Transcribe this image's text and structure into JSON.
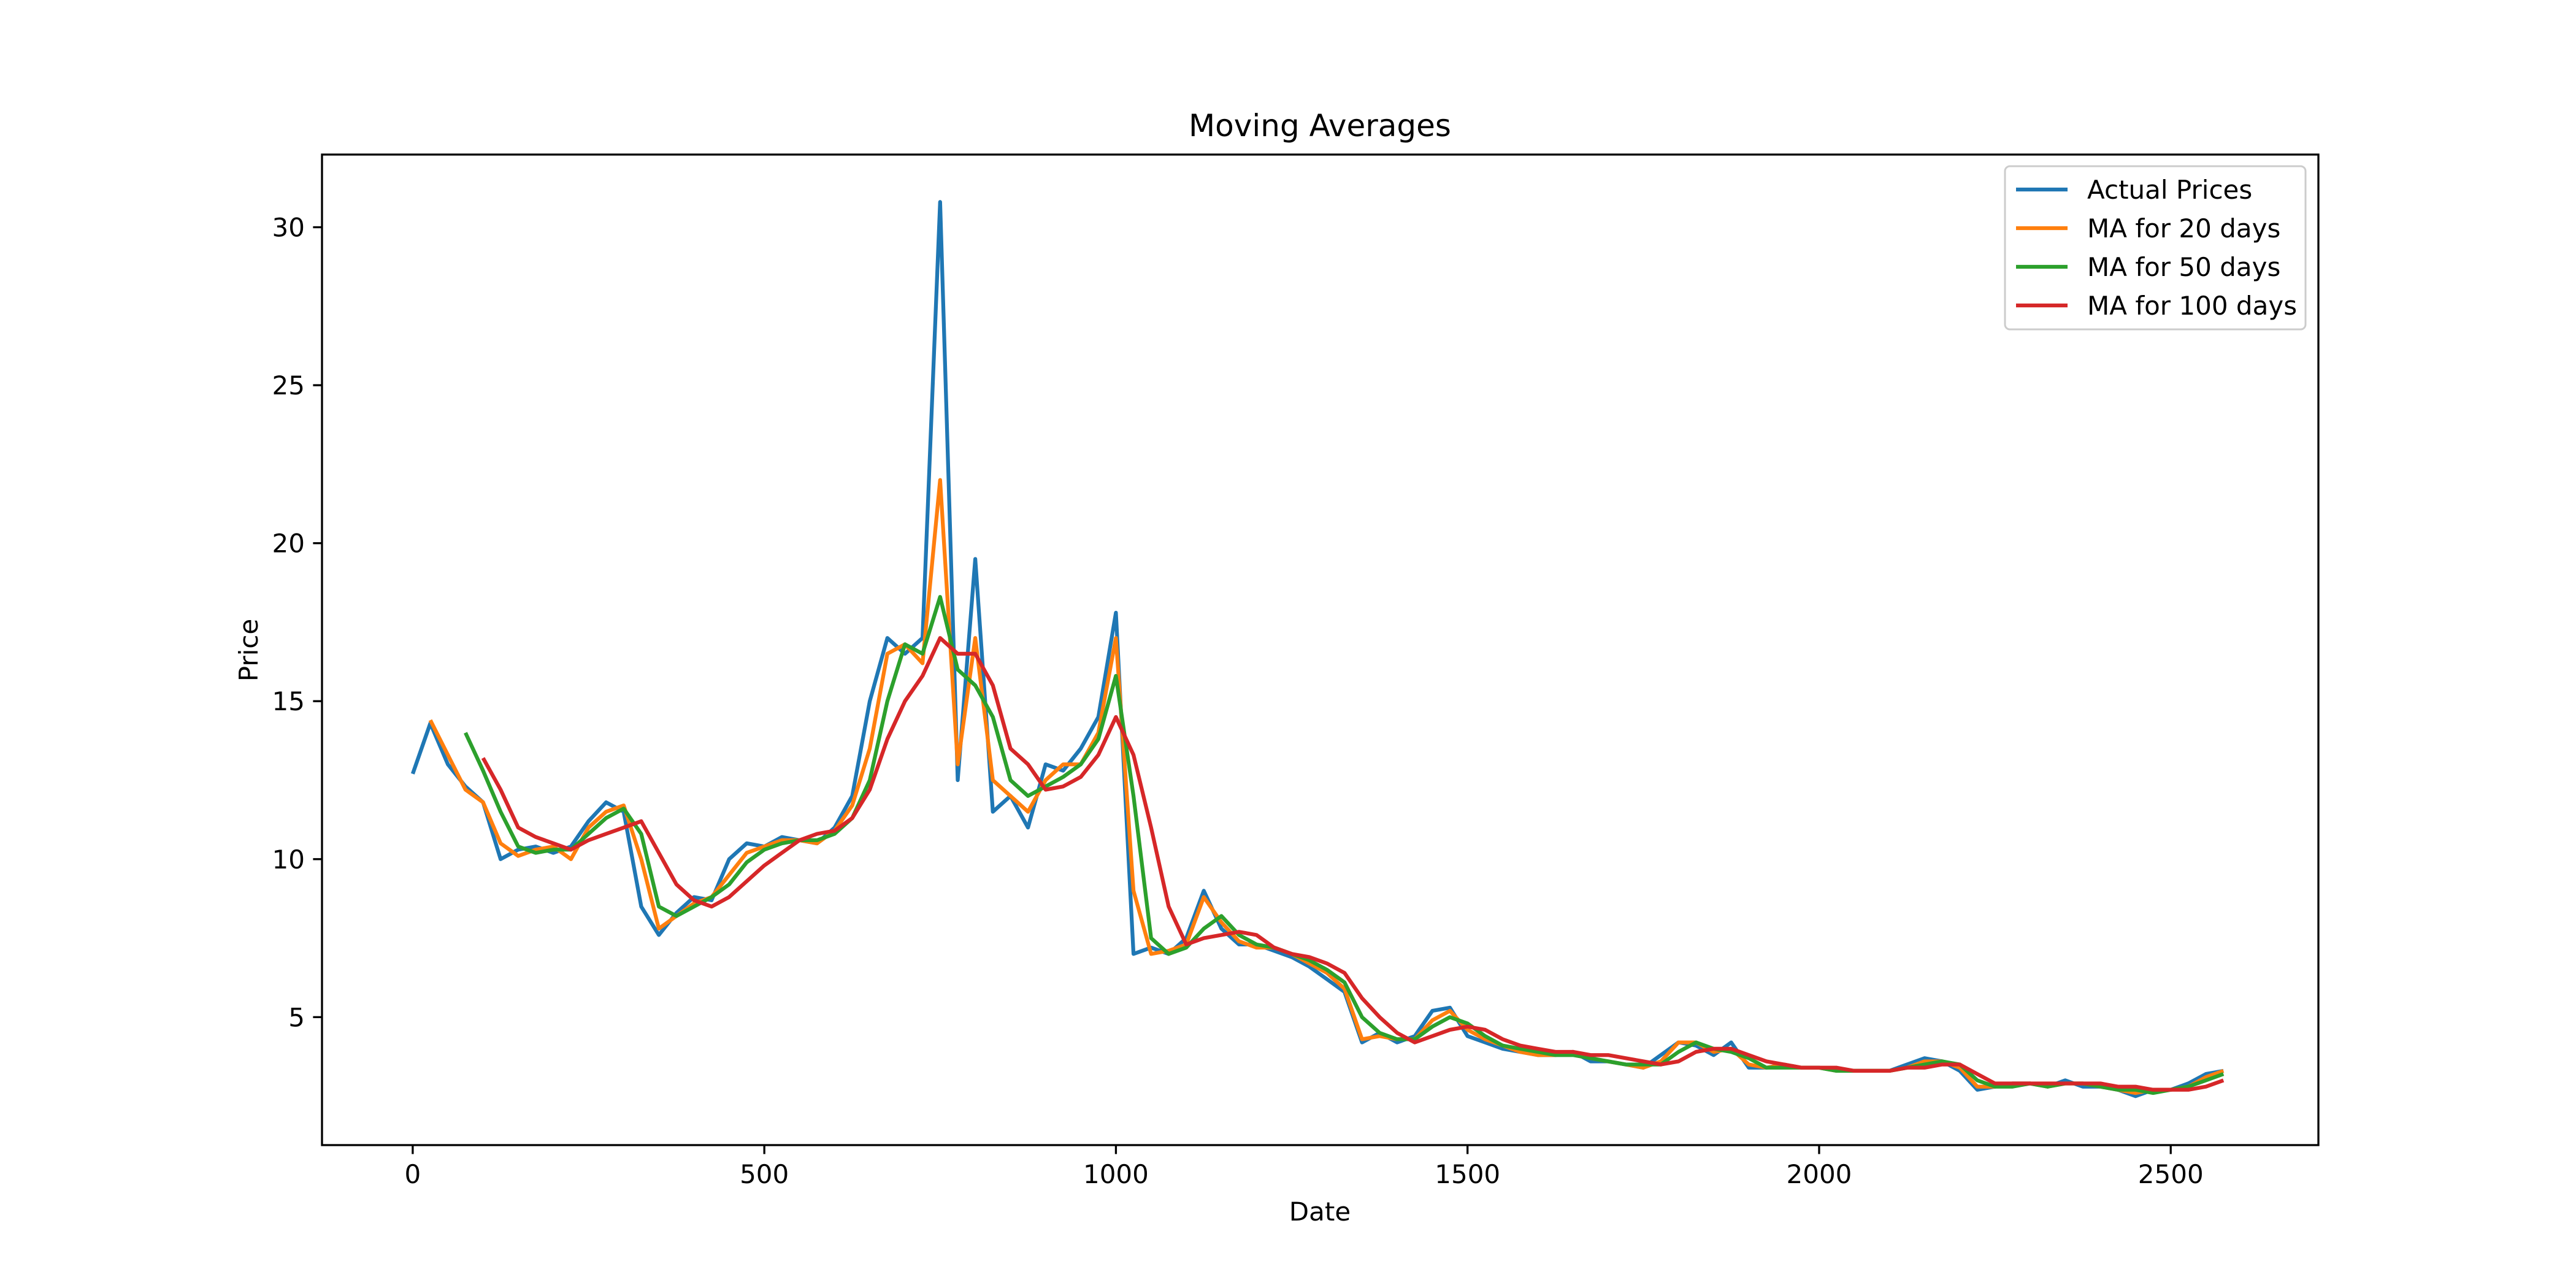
{
  "chart_data": {
    "type": "line",
    "title": "Moving Averages",
    "x_label": "Date",
    "y_label": "Price",
    "x": [
      0,
      25,
      50,
      75,
      100,
      125,
      150,
      175,
      200,
      225,
      250,
      275,
      300,
      325,
      350,
      375,
      400,
      425,
      450,
      475,
      500,
      525,
      550,
      575,
      600,
      625,
      650,
      675,
      700,
      725,
      750,
      775,
      800,
      825,
      850,
      875,
      900,
      925,
      950,
      975,
      1000,
      1025,
      1050,
      1075,
      1100,
      1125,
      1150,
      1175,
      1200,
      1225,
      1250,
      1275,
      1300,
      1325,
      1350,
      1375,
      1400,
      1425,
      1450,
      1475,
      1500,
      1525,
      1550,
      1575,
      1600,
      1625,
      1650,
      1675,
      1700,
      1725,
      1750,
      1775,
      1800,
      1825,
      1850,
      1875,
      1900,
      1925,
      1950,
      1975,
      2000,
      2025,
      2050,
      2075,
      2100,
      2125,
      2150,
      2175,
      2200,
      2225,
      2250,
      2275,
      2300,
      2325,
      2350,
      2375,
      2400,
      2425,
      2450,
      2475,
      2500,
      2525,
      2550,
      2575
    ],
    "series": [
      {
        "name": "Actual Prices",
        "color": "#1f77b4",
        "values": [
          12.7,
          14.3,
          13.0,
          12.3,
          11.8,
          10.0,
          10.3,
          10.4,
          10.2,
          10.4,
          11.2,
          11.8,
          11.5,
          8.5,
          7.6,
          8.3,
          8.8,
          8.7,
          10.0,
          10.5,
          10.4,
          10.7,
          10.6,
          10.5,
          11.0,
          12.0,
          15.0,
          17.0,
          16.5,
          17.0,
          30.8,
          12.5,
          19.5,
          11.5,
          12.0,
          11.0,
          13.0,
          12.8,
          13.5,
          14.5,
          17.8,
          7.0,
          7.2,
          7.0,
          7.5,
          9.0,
          7.8,
          7.3,
          7.3,
          7.1,
          6.9,
          6.6,
          6.2,
          5.8,
          4.2,
          4.5,
          4.2,
          4.4,
          5.2,
          5.3,
          4.4,
          4.2,
          4.0,
          3.9,
          3.8,
          3.8,
          3.9,
          3.6,
          3.6,
          3.5,
          3.4,
          3.8,
          4.2,
          4.1,
          3.8,
          4.2,
          3.4,
          3.4,
          3.5,
          3.4,
          3.4,
          3.3,
          3.3,
          3.3,
          3.3,
          3.5,
          3.7,
          3.6,
          3.3,
          2.7,
          2.8,
          2.9,
          2.9,
          2.8,
          3.0,
          2.8,
          2.8,
          2.7,
          2.5,
          2.7,
          2.7,
          2.9,
          3.2,
          3.3
        ]
      },
      {
        "name": "MA for 20 days",
        "color": "#ff7f0e",
        "values": [
          null,
          14.4,
          13.3,
          12.2,
          11.8,
          10.5,
          10.1,
          10.3,
          10.4,
          10.0,
          11.0,
          11.5,
          11.7,
          10.0,
          7.8,
          8.2,
          8.6,
          8.8,
          9.5,
          10.2,
          10.4,
          10.6,
          10.6,
          10.5,
          10.9,
          11.7,
          13.5,
          16.5,
          16.8,
          16.2,
          22.0,
          13.0,
          17.0,
          12.5,
          12.0,
          11.5,
          12.5,
          13.0,
          13.0,
          14.0,
          17.0,
          9.0,
          7.0,
          7.1,
          7.3,
          8.8,
          8.0,
          7.4,
          7.2,
          7.2,
          7.0,
          6.7,
          6.4,
          5.9,
          4.3,
          4.4,
          4.3,
          4.3,
          4.9,
          5.2,
          4.6,
          4.3,
          4.1,
          3.9,
          3.8,
          3.8,
          3.9,
          3.7,
          3.6,
          3.5,
          3.4,
          3.6,
          4.2,
          4.2,
          3.9,
          4.0,
          3.5,
          3.4,
          3.5,
          3.4,
          3.4,
          3.3,
          3.3,
          3.3,
          3.3,
          3.4,
          3.6,
          3.6,
          3.4,
          2.8,
          2.8,
          2.9,
          2.9,
          2.8,
          2.9,
          2.9,
          2.8,
          2.7,
          2.6,
          2.7,
          2.7,
          2.8,
          3.1,
          3.3
        ]
      },
      {
        "name": "MA for 50 days",
        "color": "#2ca02c",
        "values": [
          null,
          null,
          null,
          14.0,
          12.8,
          11.5,
          10.4,
          10.2,
          10.3,
          10.3,
          10.8,
          11.3,
          11.6,
          10.8,
          8.5,
          8.2,
          8.5,
          8.8,
          9.2,
          9.9,
          10.3,
          10.5,
          10.6,
          10.6,
          10.8,
          11.3,
          12.5,
          15.0,
          16.8,
          16.5,
          18.3,
          16.0,
          15.5,
          14.5,
          12.5,
          12.0,
          12.3,
          12.6,
          13.0,
          13.8,
          15.8,
          12.0,
          7.5,
          7.0,
          7.2,
          7.8,
          8.2,
          7.6,
          7.3,
          7.2,
          7.0,
          6.8,
          6.5,
          6.1,
          5.0,
          4.5,
          4.3,
          4.3,
          4.7,
          5.0,
          4.8,
          4.4,
          4.1,
          4.0,
          3.9,
          3.8,
          3.8,
          3.7,
          3.6,
          3.5,
          3.5,
          3.5,
          3.9,
          4.2,
          4.0,
          3.9,
          3.7,
          3.4,
          3.4,
          3.4,
          3.4,
          3.3,
          3.3,
          3.3,
          3.3,
          3.4,
          3.5,
          3.6,
          3.5,
          3.0,
          2.8,
          2.8,
          2.9,
          2.8,
          2.9,
          2.9,
          2.8,
          2.7,
          2.7,
          2.6,
          2.7,
          2.8,
          3.0,
          3.2
        ]
      },
      {
        "name": "MA for 100 days",
        "color": "#d62728",
        "values": [
          null,
          null,
          null,
          null,
          13.2,
          12.2,
          11.0,
          10.7,
          10.5,
          10.3,
          10.6,
          10.8,
          11.0,
          11.2,
          10.2,
          9.2,
          8.7,
          8.5,
          8.8,
          9.3,
          9.8,
          10.2,
          10.6,
          10.8,
          10.9,
          11.3,
          12.2,
          13.8,
          15.0,
          15.8,
          17.0,
          16.5,
          16.5,
          15.5,
          13.5,
          13.0,
          12.2,
          12.3,
          12.6,
          13.3,
          14.5,
          13.3,
          11.0,
          8.5,
          7.3,
          7.5,
          7.6,
          7.7,
          7.6,
          7.2,
          7.0,
          6.9,
          6.7,
          6.4,
          5.6,
          5.0,
          4.5,
          4.2,
          4.4,
          4.6,
          4.7,
          4.6,
          4.3,
          4.1,
          4.0,
          3.9,
          3.9,
          3.8,
          3.8,
          3.7,
          3.6,
          3.5,
          3.6,
          3.9,
          4.0,
          4.0,
          3.8,
          3.6,
          3.5,
          3.4,
          3.4,
          3.4,
          3.3,
          3.3,
          3.3,
          3.4,
          3.4,
          3.5,
          3.5,
          3.2,
          2.9,
          2.9,
          2.9,
          2.9,
          2.9,
          2.9,
          2.9,
          2.8,
          2.8,
          2.7,
          2.7,
          2.7,
          2.8,
          3.0
        ]
      }
    ],
    "xlim": [
      -129,
      2710
    ],
    "ylim": [
      0.95,
      32.3
    ],
    "xticks": [
      0,
      500,
      1000,
      1500,
      2000,
      2500
    ],
    "yticks": [
      5,
      10,
      15,
      20,
      25,
      30
    ],
    "legend": "upper right"
  }
}
